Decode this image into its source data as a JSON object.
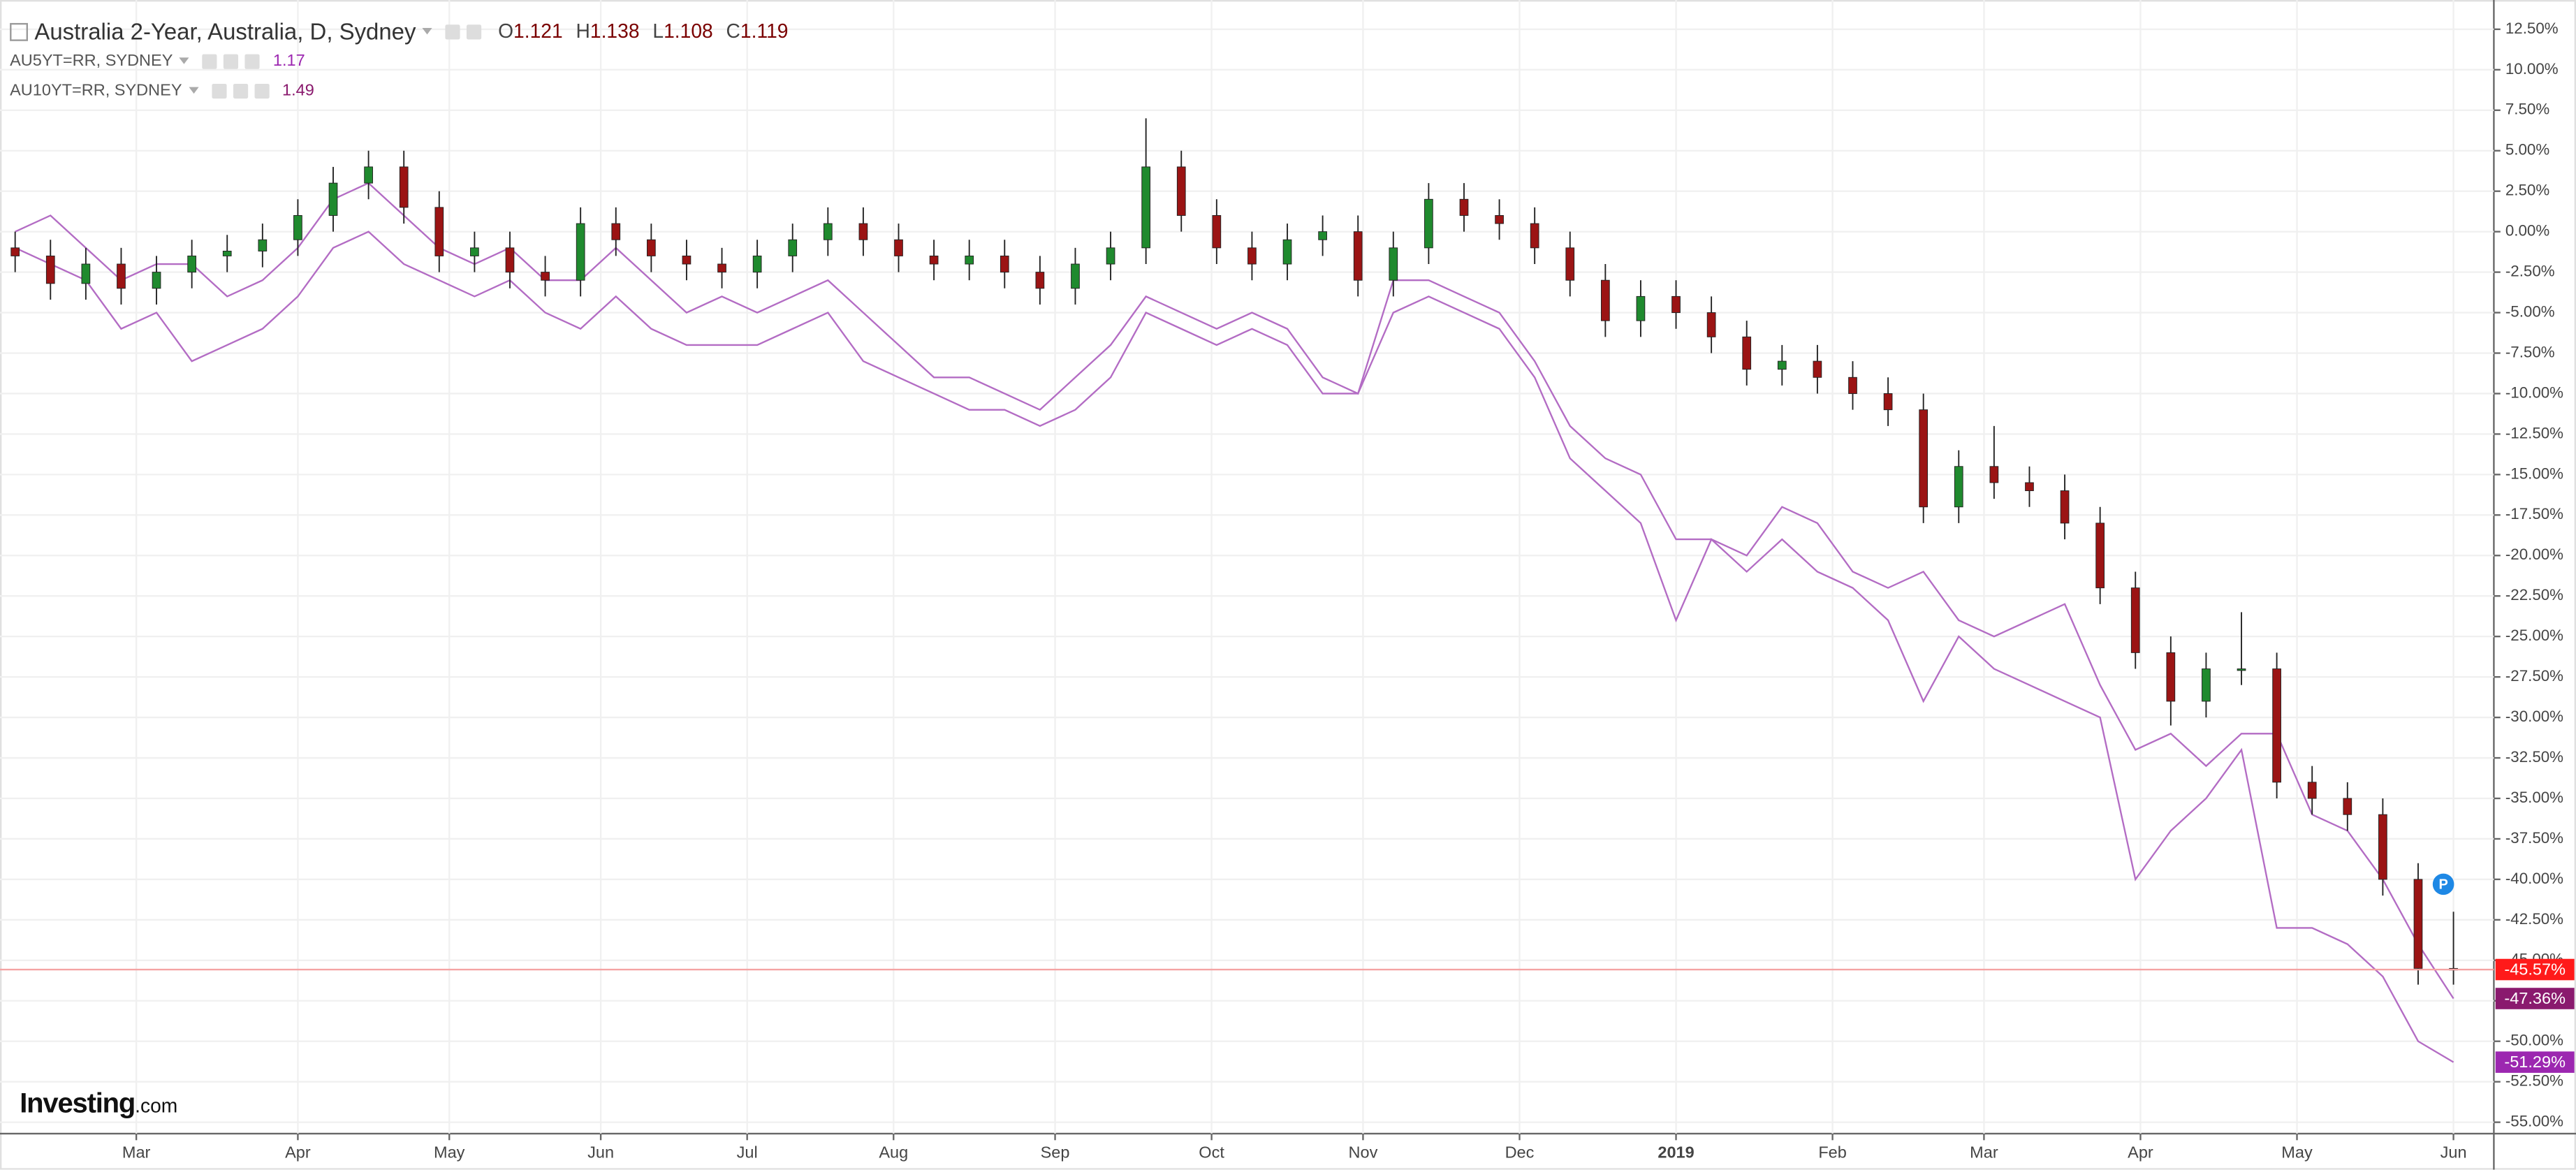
{
  "chart_data": {
    "type": "candlestick",
    "title": "Australia 2-Year, Australia, D, Sydney",
    "ohlc": [
      {
        "key": "O",
        "value": 1.121
      },
      {
        "key": "H",
        "value": 1.138
      },
      {
        "key": "L",
        "value": 1.108
      },
      {
        "key": "C",
        "value": 1.119
      }
    ],
    "x": [
      3,
      10,
      17,
      24,
      31,
      38,
      45,
      52,
      59,
      66,
      73,
      80,
      87,
      94,
      101,
      108,
      115,
      122,
      129,
      136,
      143,
      150,
      157,
      164,
      171,
      178,
      185,
      192,
      199,
      206,
      213,
      220,
      227,
      234,
      241,
      248,
      255,
      262,
      269,
      276,
      283,
      290,
      297,
      304,
      311,
      318,
      325,
      332,
      339,
      346,
      353,
      360,
      367,
      374,
      381,
      388,
      395,
      402,
      409,
      416,
      423,
      430,
      437,
      444,
      451,
      458,
      465,
      472,
      479,
      486
    ],
    "open": [
      -1.0,
      -1.5,
      -3.2,
      -2.0,
      -3.5,
      -2.5,
      -1.5,
      -1.2,
      -0.5,
      1.0,
      3.0,
      4.0,
      1.5,
      -1.5,
      -1.0,
      -2.5,
      -3.0,
      0.5,
      -0.5,
      -1.5,
      -2.0,
      -2.5,
      -1.5,
      -0.5,
      0.5,
      -0.5,
      -1.5,
      -2.0,
      -1.5,
      -2.5,
      -3.5,
      -2.0,
      -1.0,
      4.0,
      1.0,
      -1.0,
      -2.0,
      -0.5,
      0.0,
      -3.0,
      -1.0,
      2.0,
      1.0,
      0.5,
      -1.0,
      -3.0,
      -5.5,
      -4.0,
      -5.0,
      -6.5,
      -8.5,
      -8.0,
      -9.0,
      -10.0,
      -11.0,
      -17.0,
      -14.5,
      -15.5,
      -16.0,
      -18.0,
      -22.0,
      -26.0,
      -29.0,
      -27.0,
      -27.0,
      -34.0,
      -35.0,
      -36.0,
      -40.0,
      -45.5
    ],
    "high": [
      0,
      -0.5,
      -1,
      -1,
      -1.5,
      -0.5,
      -0.2,
      0.5,
      2,
      4,
      5,
      5,
      2.5,
      0,
      0,
      -1.5,
      1.5,
      1.5,
      0.5,
      -0.5,
      -1,
      -0.5,
      0.5,
      1.5,
      1.5,
      0.5,
      -0.5,
      -0.5,
      -0.5,
      -1.5,
      -1,
      0,
      7,
      5,
      2,
      0,
      0.5,
      1,
      1,
      0,
      3,
      3,
      2,
      1.5,
      0,
      -2,
      -3,
      -3,
      -4,
      -5.5,
      -7,
      -7,
      -8,
      -9,
      -10,
      -13.5,
      -12,
      -14.5,
      -15,
      -17,
      -21,
      -25,
      -26,
      -23.5,
      -26,
      -33,
      -34,
      -35,
      -39,
      -42
    ],
    "low": [
      -2.5,
      -4.2,
      -4.2,
      -4.5,
      -4.5,
      -3.5,
      -2.5,
      -2.2,
      -1.5,
      0,
      2,
      0.5,
      -2.5,
      -2.5,
      -3.5,
      -4,
      -4,
      -1.5,
      -2.5,
      -3,
      -3.5,
      -3.5,
      -2.5,
      -1.5,
      -1.5,
      -2.5,
      -3,
      -3,
      -3.5,
      -4.5,
      -4.5,
      -3,
      -2,
      0,
      -2,
      -3,
      -3,
      -1.5,
      -4,
      -4,
      -2,
      0,
      -0.5,
      -2,
      -4,
      -6.5,
      -6.5,
      -6,
      -7.5,
      -9.5,
      -9.5,
      -10,
      -11,
      -12,
      -18,
      -18,
      -16.5,
      -17,
      -19,
      -23,
      -27,
      -30.5,
      -30,
      -28,
      -35,
      -36,
      -37,
      -41,
      -46.5,
      -46.5
    ],
    "close": [
      -1.5,
      -3.2,
      -2.0,
      -3.5,
      -2.5,
      -1.5,
      -1.2,
      -0.5,
      1.0,
      3.0,
      4.0,
      1.5,
      -1.5,
      -1.0,
      -2.5,
      -3.0,
      0.5,
      -0.5,
      -1.5,
      -2.0,
      -2.5,
      -1.5,
      -0.5,
      0.5,
      -0.5,
      -1.5,
      -2.0,
      -1.5,
      -2.5,
      -3.5,
      -2.0,
      -1.0,
      4.0,
      1.0,
      -1.0,
      -2.0,
      -0.5,
      0.0,
      -3.0,
      -1.0,
      2.0,
      1.0,
      0.5,
      -1.0,
      -3.0,
      -5.5,
      -4.0,
      -5.0,
      -6.5,
      -8.5,
      -8.0,
      -9.0,
      -10.0,
      -11.0,
      -17.0,
      -14.5,
      -15.5,
      -16.0,
      -18.0,
      -22.0,
      -26.0,
      -29.0,
      -27.0,
      -27.0,
      -34.0,
      -35.0,
      -36.0,
      -40.0,
      -45.5,
      -45.57
    ],
    "color_up": "#1f8a2e",
    "color_down": "#9b1414",
    "last_label": "-45.57%",
    "last_line_color": "#f5a3a3",
    "last_tag_color": "#ff1a1a",
    "series": [
      {
        "name": "AU5YT=RR, SYDNEY",
        "legend_value": 1.17,
        "color": "#b36cc4",
        "tag_color": "#9c27b0",
        "last_label": "-51.29%",
        "values": [
          -1,
          -2,
          -3,
          -6,
          -5,
          -8,
          -7,
          -6,
          -4,
          -1,
          0,
          -2,
          -3,
          -4,
          -3,
          -5,
          -6,
          -4,
          -6,
          -7,
          -7,
          -7,
          -6,
          -5,
          -8,
          -9,
          -10,
          -11,
          -11,
          -12,
          -11,
          -9,
          -5,
          -6,
          -7,
          -6,
          -7,
          -10,
          -10,
          -5,
          -4,
          -5,
          -6,
          -9,
          -14,
          -16,
          -18,
          -24,
          -19,
          -21,
          -19,
          -21,
          -22,
          -24,
          -29,
          -25,
          -27,
          -28,
          -29,
          -30,
          -40,
          -37,
          -35,
          -32,
          -43,
          -43,
          -44,
          -46,
          -50,
          -51.29
        ]
      },
      {
        "name": "AU10YT=RR, SYDNEY",
        "legend_value": 1.49,
        "color": "#b36cc4",
        "tag_color": "#8a1a6e",
        "last_label": "-47.36%",
        "values": [
          0,
          1,
          -1,
          -3,
          -2,
          -2,
          -4,
          -3,
          -1,
          2,
          3,
          1,
          -1,
          -2,
          -1,
          -3,
          -3,
          -1,
          -3,
          -5,
          -4,
          -5,
          -4,
          -3,
          -5,
          -7,
          -9,
          -9,
          -10,
          -11,
          -9,
          -7,
          -4,
          -5,
          -6,
          -5,
          -6,
          -9,
          -10,
          -3,
          -3,
          -4,
          -5,
          -8,
          -12,
          -14,
          -15,
          -19,
          -19,
          -20,
          -17,
          -18,
          -21,
          -22,
          -21,
          -24,
          -25,
          -24,
          -23,
          -28,
          -32,
          -31,
          -33,
          -31,
          -31,
          -36,
          -37,
          -40,
          -44,
          -47.36
        ]
      }
    ],
    "annotation": {
      "text": "P",
      "x": 484,
      "y": -40.3,
      "color": "#1e88e5"
    },
    "xlim": [
      0,
      494
    ],
    "xticks": [
      {
        "value": 27,
        "label": "Mar"
      },
      {
        "value": 59,
        "label": "Apr"
      },
      {
        "value": 89,
        "label": "May"
      },
      {
        "value": 119,
        "label": "Jun"
      },
      {
        "value": 148,
        "label": "Jul"
      },
      {
        "value": 177,
        "label": "Aug"
      },
      {
        "value": 209,
        "label": "Sep"
      },
      {
        "value": 240,
        "label": "Oct"
      },
      {
        "value": 270,
        "label": "Nov"
      },
      {
        "value": 301,
        "label": "Dec"
      },
      {
        "value": 332,
        "label": "2019"
      },
      {
        "value": 363,
        "label": "Feb"
      },
      {
        "value": 393,
        "label": "Mar"
      },
      {
        "value": 424,
        "label": "Apr"
      },
      {
        "value": 455,
        "label": "May"
      },
      {
        "value": 486,
        "label": "Jun"
      }
    ],
    "ylim": [
      -55.5,
      13.8
    ],
    "yticks": [
      {
        "value": 12.5,
        "label": "12.50%"
      },
      {
        "value": 10,
        "label": "10.00%"
      },
      {
        "value": 7.5,
        "label": "7.50%"
      },
      {
        "value": 5,
        "label": "5.00%"
      },
      {
        "value": 2.5,
        "label": "2.50%"
      },
      {
        "value": 0,
        "label": "0.00%"
      },
      {
        "value": -2.5,
        "label": "-2.50%"
      },
      {
        "value": -5,
        "label": "-5.00%"
      },
      {
        "value": -7.5,
        "label": "-7.50%"
      },
      {
        "value": -10,
        "label": "-10.00%"
      },
      {
        "value": -12.5,
        "label": "-12.50%"
      },
      {
        "value": -15,
        "label": "-15.00%"
      },
      {
        "value": -17.5,
        "label": "-17.50%"
      },
      {
        "value": -20,
        "label": "-20.00%"
      },
      {
        "value": -22.5,
        "label": "-22.50%"
      },
      {
        "value": -25,
        "label": "-25.00%"
      },
      {
        "value": -27.5,
        "label": "-27.50%"
      },
      {
        "value": -30,
        "label": "-30.00%"
      },
      {
        "value": -32.5,
        "label": "-32.50%"
      },
      {
        "value": -35,
        "label": "-35.00%"
      },
      {
        "value": -37.5,
        "label": "-37.50%"
      },
      {
        "value": -40,
        "label": "-40.00%"
      },
      {
        "value": -42.5,
        "label": "-42.50%"
      },
      {
        "value": -45,
        "label": "-45.00%"
      },
      {
        "value": -47.5,
        "label": "-47.50%"
      },
      {
        "value": -50,
        "label": "-50.00%"
      },
      {
        "value": -52.5,
        "label": "-52.50%"
      },
      {
        "value": -55,
        "label": "-55.00%"
      }
    ],
    "grid": true,
    "logo": "Investing",
    "logo_suffix": ".com"
  }
}
